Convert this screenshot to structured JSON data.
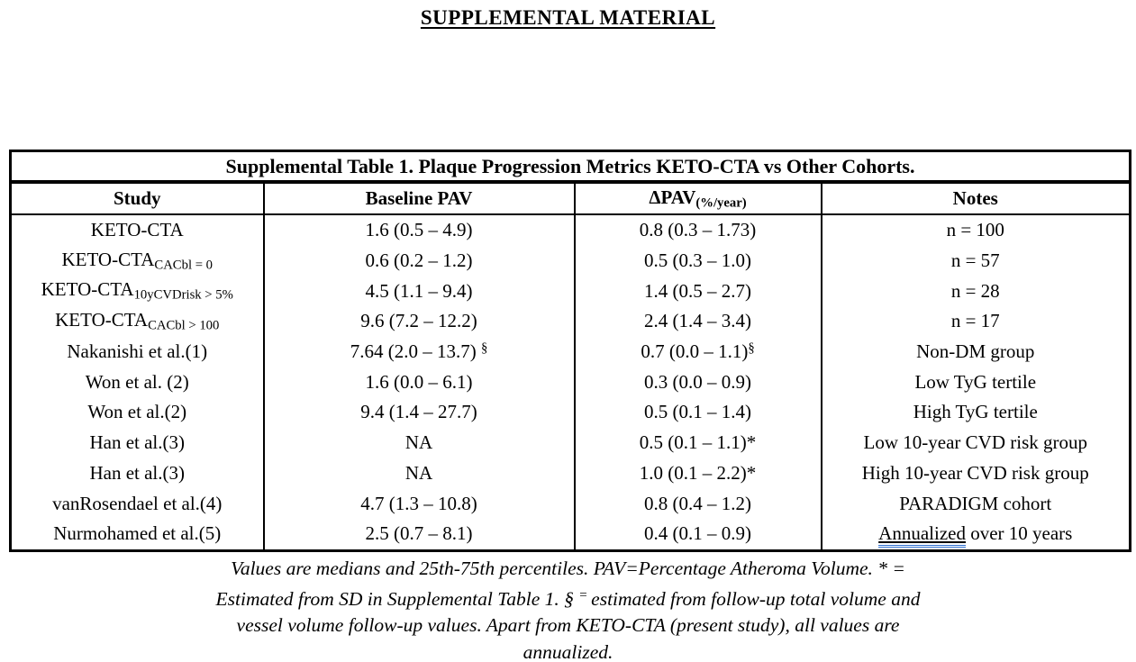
{
  "page": {
    "title": "SUPPLEMENTAL MATERIAL"
  },
  "table": {
    "caption": "Supplemental Table 1. Plaque Progression Metrics KETO-CTA vs Other Cohorts.",
    "headers": [
      [
        {
          "t": "Study"
        }
      ],
      [
        {
          "t": "Baseline PAV"
        }
      ],
      [
        {
          "t": "ΔPAV"
        },
        {
          "t": "(%/year)",
          "v": "sub"
        }
      ],
      [
        {
          "t": "Notes"
        }
      ]
    ],
    "rows": [
      {
        "study": [
          {
            "t": "KETO-CTA"
          }
        ],
        "baseline_pav": [
          {
            "t": "1.6 (0.5 – 4.9)"
          }
        ],
        "dpav": [
          {
            "t": "0.8 (0.3 – 1.73)"
          }
        ],
        "notes": [
          {
            "t": "n = 100"
          }
        ]
      },
      {
        "study": [
          {
            "t": "KETO-CTA"
          },
          {
            "t": "CACbl = 0",
            "v": "sub"
          }
        ],
        "baseline_pav": [
          {
            "t": "0.6 (0.2 – 1.2)"
          }
        ],
        "dpav": [
          {
            "t": "0.5 (0.3 – 1.0)"
          }
        ],
        "notes": [
          {
            "t": "n = 57"
          }
        ]
      },
      {
        "study": [
          {
            "t": "KETO-CTA"
          },
          {
            "t": "10yCVDrisk > 5%",
            "v": "sub"
          }
        ],
        "baseline_pav": [
          {
            "t": "4.5 (1.1 – 9.4)"
          }
        ],
        "dpav": [
          {
            "t": "1.4 (0.5 – 2.7)"
          }
        ],
        "notes": [
          {
            "t": "n = 28"
          }
        ]
      },
      {
        "study": [
          {
            "t": "KETO-CTA"
          },
          {
            "t": "CACbl > 100",
            "v": "sub"
          }
        ],
        "baseline_pav": [
          {
            "t": "9.6 (7.2 – 12.2)"
          }
        ],
        "dpav": [
          {
            "t": "2.4 (1.4 – 3.4)"
          }
        ],
        "notes": [
          {
            "t": "n = 17"
          }
        ]
      },
      {
        "study": [
          {
            "t": "Nakanishi et al.(1)"
          }
        ],
        "baseline_pav": [
          {
            "t": "7.64 (2.0 – 13.7) "
          },
          {
            "t": "§",
            "v": "sup"
          }
        ],
        "dpav": [
          {
            "t": "0.7 (0.0 – 1.1)"
          },
          {
            "t": "§",
            "v": "sup"
          }
        ],
        "notes": [
          {
            "t": "Non-DM group"
          }
        ]
      },
      {
        "study": [
          {
            "t": "Won et al. (2)"
          }
        ],
        "baseline_pav": [
          {
            "t": "1.6 (0.0 – 6.1)"
          }
        ],
        "dpav": [
          {
            "t": "0.3 (0.0 – 0.9)"
          }
        ],
        "notes": [
          {
            "t": "Low TyG tertile"
          }
        ]
      },
      {
        "study": [
          {
            "t": "Won et al.(2)"
          }
        ],
        "baseline_pav": [
          {
            "t": "9.4 (1.4 – 27.7)"
          }
        ],
        "dpav": [
          {
            "t": "0.5 (0.1 – 1.4)"
          }
        ],
        "notes": [
          {
            "t": "High TyG tertile"
          }
        ]
      },
      {
        "study": [
          {
            "t": "Han et al.(3)"
          }
        ],
        "baseline_pav": [
          {
            "t": "NA"
          }
        ],
        "dpav": [
          {
            "t": "0.5 (0.1 – 1.1)*"
          }
        ],
        "notes": [
          {
            "t": "Low 10-year CVD risk group"
          }
        ]
      },
      {
        "study": [
          {
            "t": "Han et al.(3)"
          }
        ],
        "baseline_pav": [
          {
            "t": "NA"
          }
        ],
        "dpav": [
          {
            "t": "1.0 (0.1 – 2.2)*"
          }
        ],
        "notes": [
          {
            "t": "High 10-year CVD risk group"
          }
        ]
      },
      {
        "study": [
          {
            "t": "vanRosendael et al.(4)"
          }
        ],
        "baseline_pav": [
          {
            "t": "4.7 (1.3 – 10.8)"
          }
        ],
        "dpav": [
          {
            "t": "0.8 (0.4 – 1.2)"
          }
        ],
        "notes": [
          {
            "t": "PARADIGM cohort"
          }
        ]
      },
      {
        "study": [
          {
            "t": "Nurmohamed et al.(5)"
          }
        ],
        "baseline_pav": [
          {
            "t": "2.5 (0.7 – 8.1)"
          }
        ],
        "dpav": [
          {
            "t": "0.4 (0.1 – 0.9)"
          }
        ],
        "notes": [
          {
            "t": "Annualized",
            "v": "gram"
          },
          {
            "t": " over 10 years"
          }
        ]
      }
    ]
  },
  "footnote": {
    "lines": [
      [
        {
          "t": "Values are medians and 25th-75th percentiles. PAV=Percentage Atheroma Volume. * ="
        }
      ],
      [
        {
          "t": "Estimated from SD in Supplemental Table 1. § "
        },
        {
          "t": "= ",
          "v": "sup"
        },
        {
          "t": "estimated from follow-up total volume and"
        }
      ],
      [
        {
          "t": "vessel volume follow-up values. Apart from KETO-CTA (present study), all values are"
        }
      ],
      [
        {
          "t": "annualized."
        }
      ]
    ]
  },
  "colors": {
    "text": "#000000",
    "border": "#000000",
    "grammar_underline": "#2e6fd0",
    "background": "#ffffff"
  }
}
